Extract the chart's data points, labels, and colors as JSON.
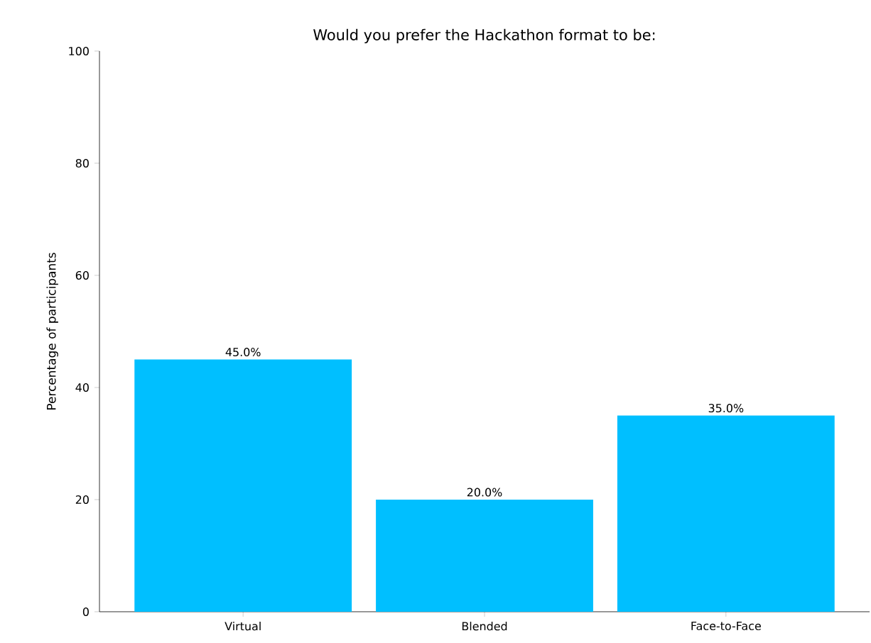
{
  "chart_data": {
    "type": "bar",
    "title": "Would you prefer the Hackathon format to be:",
    "ylabel": "Percentage of participants",
    "categories": [
      "Virtual",
      "Blended",
      "Face-to-Face"
    ],
    "values": [
      45,
      20,
      35
    ],
    "color": "#00bfff",
    "value_labels": [
      "45.0%",
      "20.0%",
      "35.0%"
    ],
    "ylim": [
      0,
      100
    ],
    "yticks": [
      0,
      20,
      40,
      60,
      80,
      100
    ]
  }
}
